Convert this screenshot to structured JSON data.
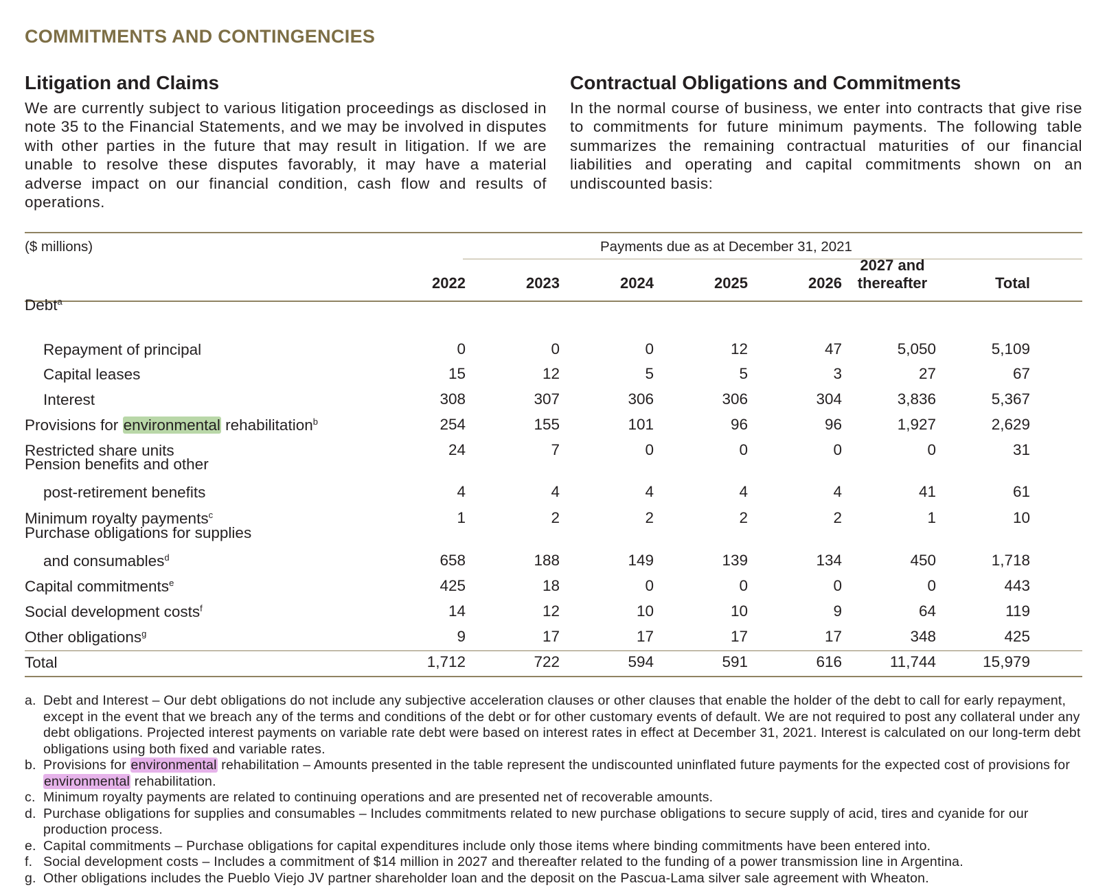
{
  "section_title": "COMMITMENTS AND CONTINGENCIES",
  "litigation": {
    "heading": "Litigation and Claims",
    "body": "We are currently subject to various litigation proceedings as disclosed in note 35 to the Financial Statements, and we may be involved in disputes with other parties in the future that may result in litigation. If we are unable to resolve these disputes favorably, it may have a material adverse impact on our financial condition, cash flow and results of operations."
  },
  "contractual": {
    "heading": "Contractual Obligations and Commitments",
    "body": "In the normal course of business, we enter into contracts that give rise to commitments for future minimum payments. The following table summarizes the remaining contractual maturities of our financial liabilities and operating and capital commitments shown on an undiscounted basis:"
  },
  "table": {
    "units": "($ millions)",
    "span_label": "Payments due as at December 31, 2021",
    "columns": [
      "2022",
      "2023",
      "2024",
      "2025",
      "2026",
      "2027 and thereafter",
      "Total"
    ],
    "col2027_line1": "2027 and",
    "col2027_line2": "thereafter",
    "debt_label": "Debt",
    "debt_sup": "a",
    "rows": [
      {
        "label": "Repayment of principal",
        "values": [
          "0",
          "0",
          "0",
          "12",
          "47",
          "5,050",
          "5,109"
        ]
      },
      {
        "label": "Capital leases",
        "values": [
          "15",
          "12",
          "5",
          "5",
          "3",
          "27",
          "67"
        ]
      },
      {
        "label": "Interest",
        "values": [
          "308",
          "307",
          "306",
          "306",
          "304",
          "3,836",
          "5,367"
        ]
      },
      {
        "label_pre": "Provisions for ",
        "label_hl": "environmental",
        "label_post": " rehabilitation",
        "sup": "b",
        "values": [
          "254",
          "155",
          "101",
          "96",
          "96",
          "1,927",
          "2,629"
        ]
      },
      {
        "label": "Restricted share units",
        "values": [
          "24",
          "7",
          "0",
          "0",
          "0",
          "0",
          "31"
        ]
      },
      {
        "label1": "Pension benefits and other",
        "label2": "post-retirement benefits",
        "values": [
          "4",
          "4",
          "4",
          "4",
          "4",
          "41",
          "61"
        ]
      },
      {
        "label": "Minimum royalty payments",
        "sup": "c",
        "values": [
          "1",
          "2",
          "2",
          "2",
          "2",
          "1",
          "10"
        ]
      },
      {
        "label1": "Purchase obligations for supplies",
        "label2": "and consumables",
        "sup": "d",
        "values": [
          "658",
          "188",
          "149",
          "139",
          "134",
          "450",
          "1,718"
        ]
      },
      {
        "label": "Capital commitments",
        "sup": "e",
        "values": [
          "425",
          "18",
          "0",
          "0",
          "0",
          "0",
          "443"
        ]
      },
      {
        "label": "Social development costs",
        "sup": "f",
        "values": [
          "14",
          "12",
          "10",
          "10",
          "9",
          "64",
          "119"
        ]
      },
      {
        "label": "Other obligations",
        "sup": "g",
        "values": [
          "9",
          "17",
          "17",
          "17",
          "17",
          "348",
          "425"
        ]
      }
    ],
    "total": {
      "label": "Total",
      "values": [
        "1,712",
        "722",
        "594",
        "591",
        "616",
        "11,744",
        "15,979"
      ]
    }
  },
  "footnotes": {
    "a": {
      "letter": "a.",
      "text": "Debt and Interest – Our debt obligations do not include any subjective acceleration clauses or other clauses that enable the holder of the debt to call for early repayment, except in the event that we breach any of the terms and conditions of the debt or for other customary events of default. We are not required to post any collateral under any debt obligations. Projected interest payments on variable rate debt were based on interest rates in effect at December 31, 2021. Interest is calculated on our long-term debt obligations using both fixed and variable rates."
    },
    "b": {
      "letter": "b.",
      "pre": "Provisions for ",
      "hl": "environmental",
      "mid": " rehabilitation – Amounts presented in the table represent the undiscounted uninflated future payments for the expected cost of provisions for ",
      "hl2": "environmental",
      "post": " rehabilitation."
    },
    "c": {
      "letter": "c.",
      "text": "Minimum royalty payments are related to continuing operations and are presented net of recoverable amounts."
    },
    "d": {
      "letter": "d.",
      "text": "Purchase obligations for supplies and consumables – Includes commitments related to new purchase obligations to secure supply of acid, tires and cyanide for our production process."
    },
    "e": {
      "letter": "e.",
      "text": "Capital commitments – Purchase obligations for capital expenditures include only those items where binding commitments have been entered into."
    },
    "f": {
      "letter": "f.",
      "text": "Social development costs – Includes a commitment of $14 million in 2027 and thereafter related to the funding of a power transmission line in Argentina."
    },
    "g": {
      "letter": "g.",
      "text": "Other obligations includes the Pueblo Viejo JV partner shareholder loan and the deposit on the Pascua-Lama silver sale agreement with Wheaton."
    }
  },
  "colors": {
    "title": "#7d6e45",
    "rule": "#8f8261",
    "highlight_green": "#b9d7a8",
    "highlight_pink": "#e6b3ea"
  }
}
